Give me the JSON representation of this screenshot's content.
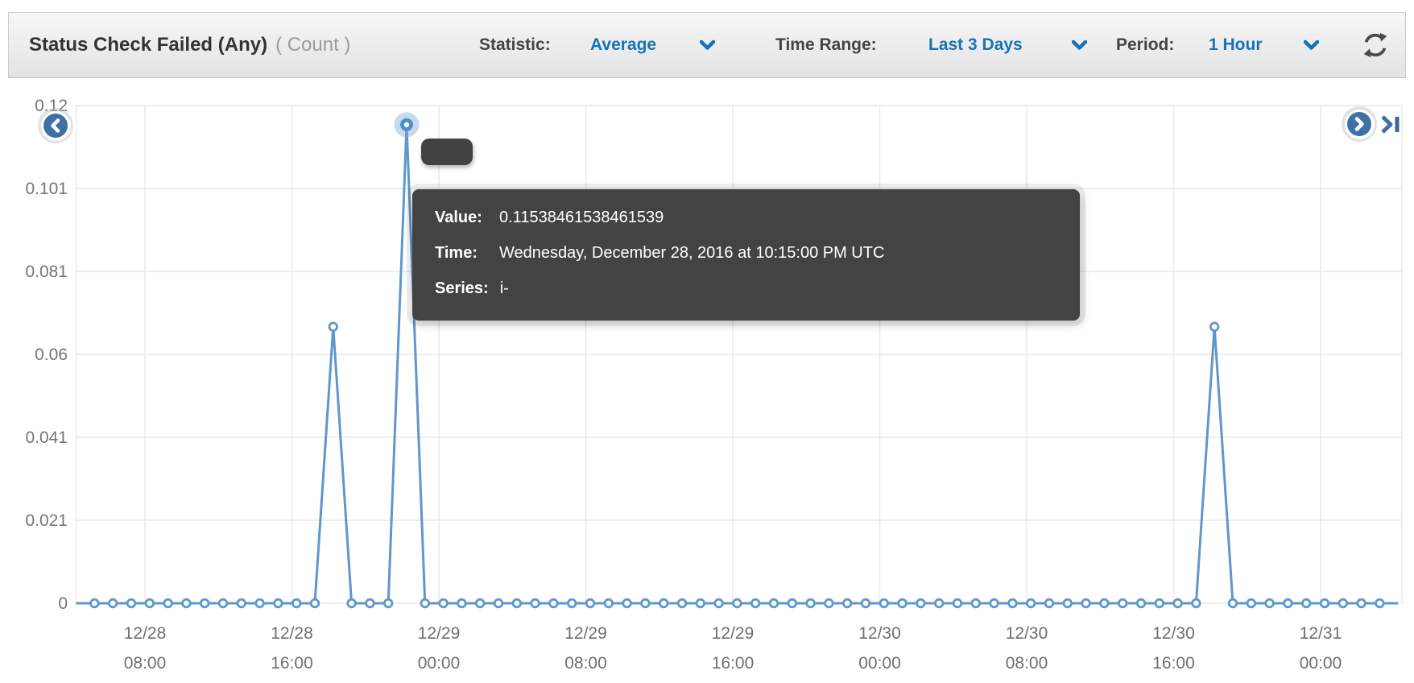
{
  "header": {
    "title": "Status Check Failed (Any)",
    "unit": "( Count )",
    "statistic_label": "Statistic:",
    "statistic_value": "Average",
    "time_range_label": "Time Range:",
    "time_range_value": "Last 3 Days",
    "period_label": "Period:",
    "period_value": "1 Hour"
  },
  "tooltip": {
    "value_label": "Value:",
    "value": "0.11538461538461539",
    "time_label": "Time:",
    "time": "Wednesday, December 28, 2016 at 10:15:00 PM UTC",
    "series_label": "Series:",
    "series": "i-"
  },
  "colors": {
    "accent_blue": "#1573b9",
    "nav_circle_blue": "#3d71a6",
    "tooltip_background": "#434343",
    "line_blue": "#5e97cc",
    "axis_text": "#757575",
    "grid_line": "#e9e9e9"
  },
  "chart_data": {
    "type": "line",
    "title": "Status Check Failed (Any) ( Count )",
    "xlabel": "",
    "ylabel": "Count",
    "ylim": [
      0,
      0.12
    ],
    "grid": true,
    "legend_position": "none",
    "line_color": "#5e97cc",
    "y_tick_labels": [
      "0.12",
      "0.101",
      "0.081",
      "0.06",
      "0.041",
      "0.021",
      "0"
    ],
    "x_ticks": [
      {
        "date": "12/28",
        "time": "08:00"
      },
      {
        "date": "12/28",
        "time": "16:00"
      },
      {
        "date": "12/29",
        "time": "00:00"
      },
      {
        "date": "12/29",
        "time": "08:00"
      },
      {
        "date": "12/29",
        "time": "16:00"
      },
      {
        "date": "12/30",
        "time": "00:00"
      },
      {
        "date": "12/30",
        "time": "08:00"
      },
      {
        "date": "12/30",
        "time": "16:00"
      },
      {
        "date": "12/31",
        "time": "00:00"
      }
    ],
    "series": [
      {
        "name": "i-",
        "start": "2016-12-28T05:15:00Z",
        "interval_hours": 1,
        "values": [
          0,
          0,
          0,
          0,
          0,
          0,
          0,
          0,
          0,
          0,
          0,
          0,
          0,
          0.06666666666666667,
          0,
          0,
          0,
          0.11538461538461539,
          0,
          0,
          0,
          0,
          0,
          0,
          0,
          0,
          0,
          0,
          0,
          0,
          0,
          0,
          0,
          0,
          0,
          0,
          0,
          0,
          0,
          0,
          0,
          0,
          0,
          0,
          0,
          0,
          0,
          0,
          0,
          0,
          0,
          0,
          0,
          0,
          0,
          0,
          0,
          0,
          0,
          0,
          0,
          0.06666666666666667,
          0,
          0,
          0,
          0,
          0,
          0,
          0,
          0,
          0
        ]
      }
    ],
    "highlighted_point": {
      "series": "i-",
      "index": 17,
      "value": 0.11538461538461539,
      "time": "Wednesday, December 28, 2016 at 10:15:00 PM UTC"
    }
  }
}
